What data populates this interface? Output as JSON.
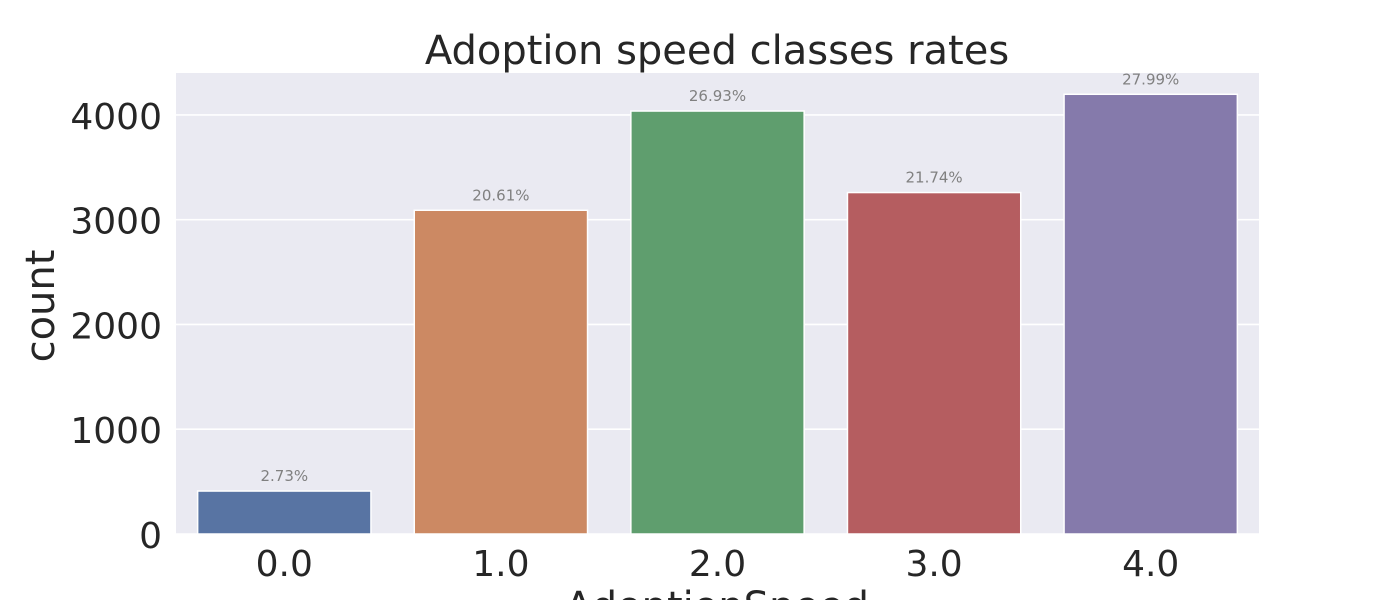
{
  "chart_data": {
    "type": "bar",
    "title": "Adoption speed classes rates",
    "xlabel": "AdoptionSpeed",
    "ylabel": "count",
    "categories": [
      "0.0",
      "1.0",
      "2.0",
      "3.0",
      "4.0"
    ],
    "values": [
      410,
      3090,
      4037,
      3259,
      4197
    ],
    "data_labels": [
      "2.73%",
      "20.61%",
      "26.93%",
      "21.74%",
      "27.99%"
    ],
    "yticks": [
      0,
      1000,
      2000,
      3000,
      4000
    ],
    "ylim": [
      0,
      4400
    ],
    "grid": true,
    "legend": "none",
    "colors": [
      "#5874a3",
      "#cc8963",
      "#5f9e6e",
      "#b55d60",
      "#857aab"
    ],
    "plot_background": "#eaeaf2",
    "gridline_color": "#ffffff",
    "data_label_color": "#808080"
  }
}
